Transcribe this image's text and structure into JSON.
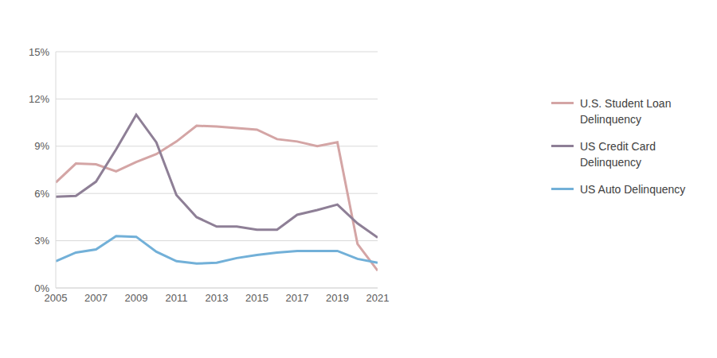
{
  "chart_data": {
    "type": "line",
    "x": [
      2005,
      2006,
      2007,
      2008,
      2009,
      2010,
      2011,
      2012,
      2013,
      2014,
      2015,
      2016,
      2017,
      2018,
      2019,
      2020,
      2021
    ],
    "series": [
      {
        "name": "U.S. Student Loan Delinquency",
        "color": "#d4a5a5",
        "values": [
          6.7,
          7.9,
          7.85,
          7.4,
          8.0,
          8.5,
          9.3,
          10.3,
          10.25,
          10.15,
          10.05,
          9.45,
          9.3,
          9.0,
          9.25,
          2.8,
          1.1
        ]
      },
      {
        "name": "US Credit Card Delinquency",
        "color": "#8e7f96",
        "values": [
          5.8,
          5.85,
          6.75,
          8.8,
          11.0,
          9.25,
          5.9,
          4.5,
          3.9,
          3.9,
          3.7,
          3.7,
          4.65,
          4.95,
          5.3,
          4.1,
          3.2
        ]
      },
      {
        "name": "US Auto Delinquency",
        "color": "#72b0d8",
        "values": [
          1.7,
          2.25,
          2.45,
          3.3,
          3.25,
          2.3,
          1.7,
          1.55,
          1.6,
          1.9,
          2.1,
          2.25,
          2.35,
          2.35,
          2.35,
          1.85,
          1.6
        ]
      }
    ],
    "xlim": [
      2005,
      2021
    ],
    "xticks": [
      2005,
      2007,
      2009,
      2011,
      2013,
      2015,
      2017,
      2019,
      2021
    ],
    "ylim": [
      0,
      15
    ],
    "yticks": [
      {
        "value": 0,
        "label": "0%"
      },
      {
        "value": 3,
        "label": "3%"
      },
      {
        "value": 6,
        "label": "6%"
      },
      {
        "value": 9,
        "label": "9%"
      },
      {
        "value": 12,
        "label": "12%"
      },
      {
        "value": 15,
        "label": "15%"
      }
    ],
    "grid": true,
    "legend": "right"
  }
}
